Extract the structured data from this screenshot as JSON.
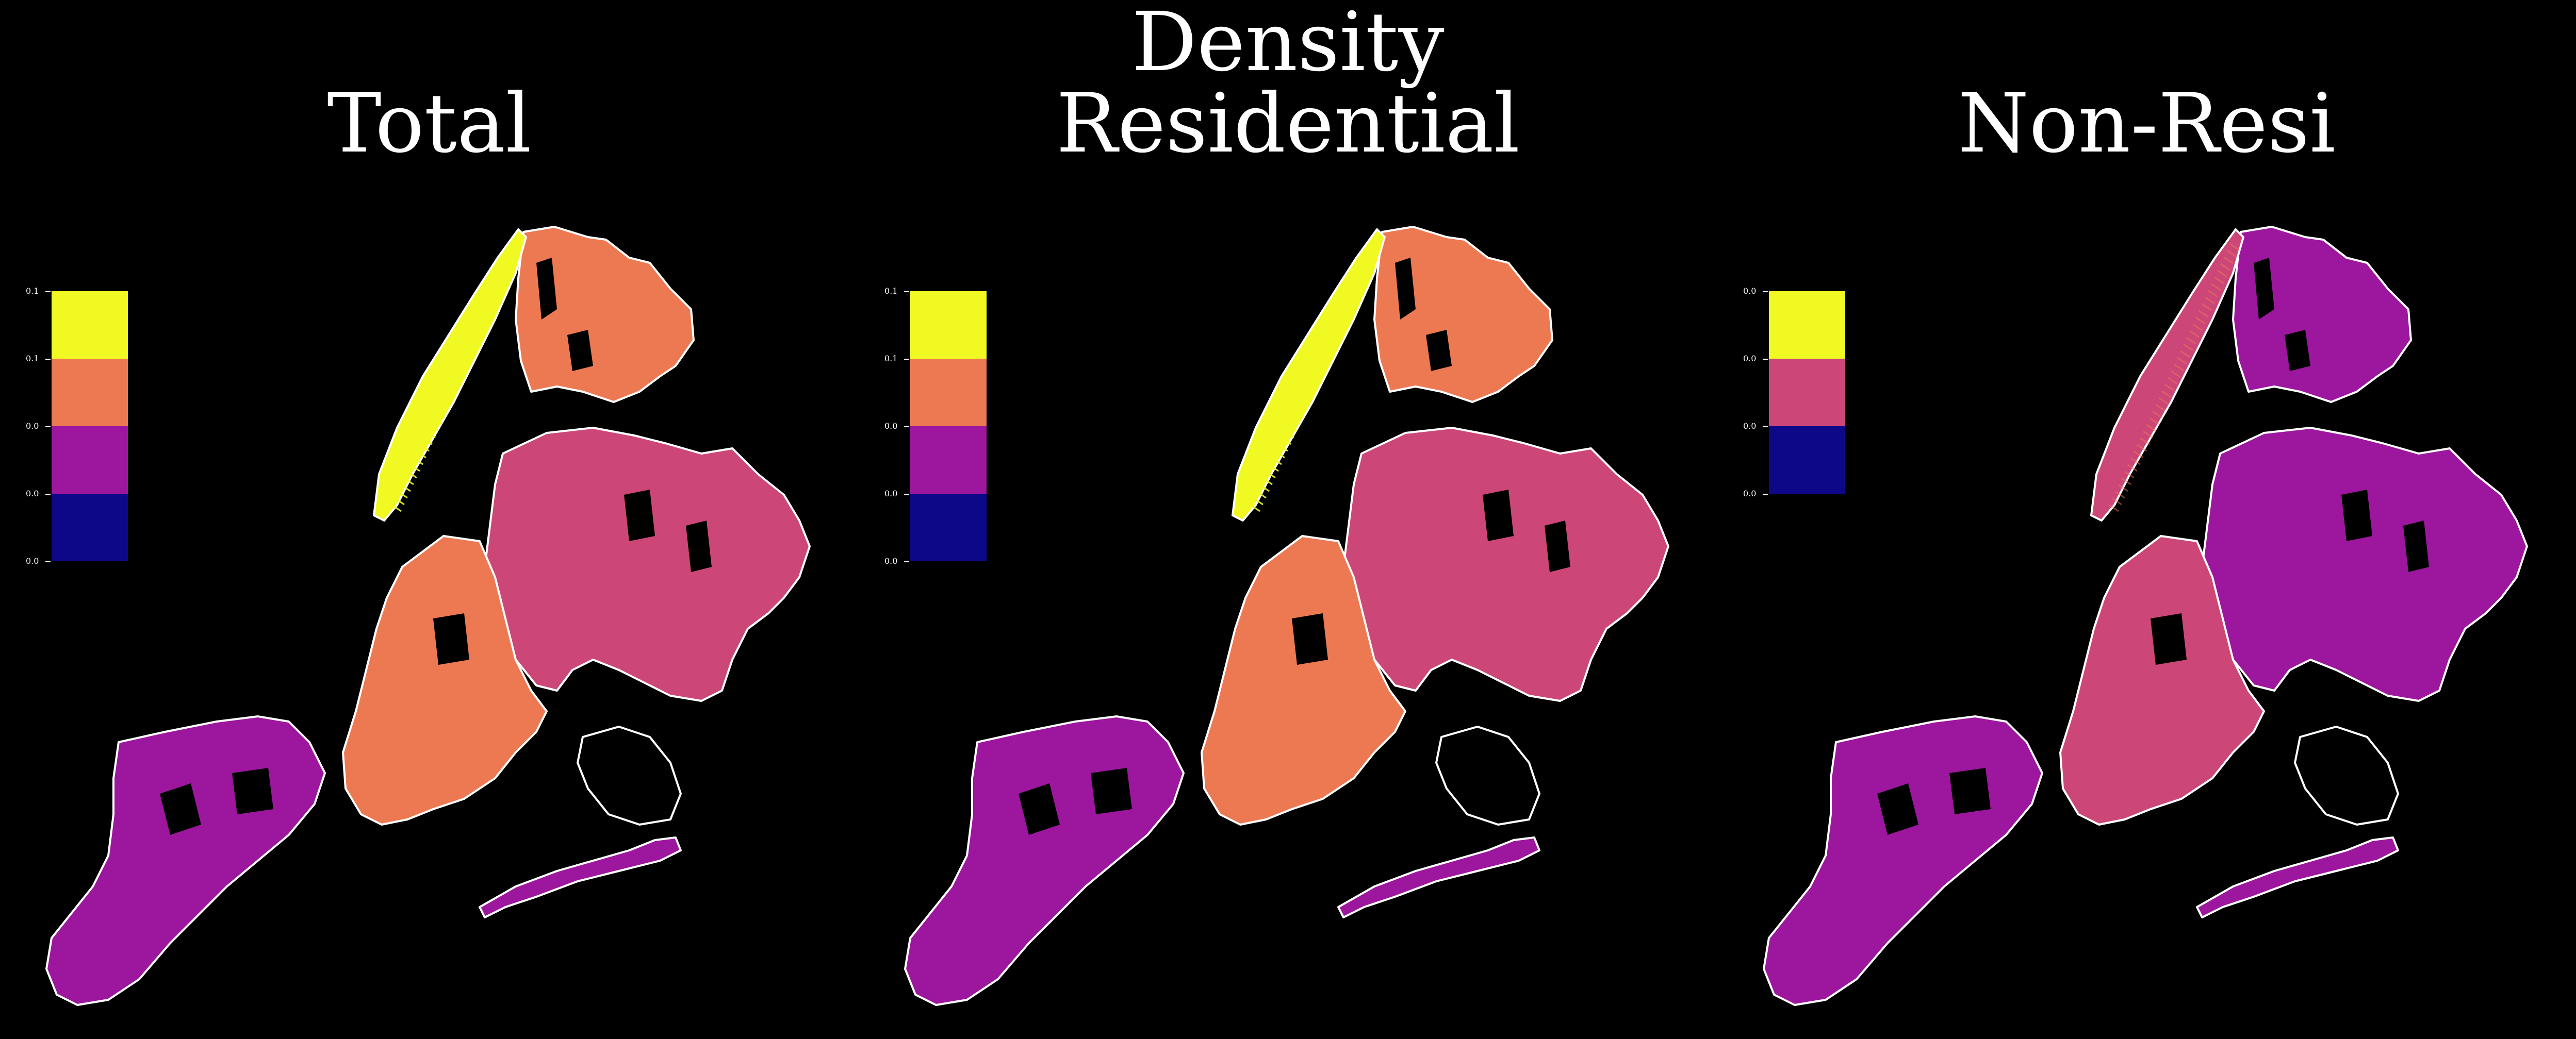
{
  "figure": {
    "suptitle": "Density"
  },
  "panels": [
    {
      "title": "Total",
      "legend": {
        "tick_labels": [
          "0.1",
          "0.1",
          "0.0",
          "0.0",
          "0.0"
        ],
        "colors": [
          "#f0f921",
          "#ed7953",
          "#9c179e",
          "#0d0887"
        ]
      }
    },
    {
      "title": "Residential",
      "legend": {
        "tick_labels": [
          "0.1",
          "0.1",
          "0.0",
          "0.0",
          "0.0"
        ],
        "colors": [
          "#f0f921",
          "#ed7953",
          "#9c179e",
          "#0d0887"
        ]
      }
    },
    {
      "title": "Non-Resi",
      "legend": {
        "tick_labels": [
          "0.0",
          "0.0",
          "0.0",
          "0.0"
        ],
        "colors": [
          "#f0f921",
          "#cc4778",
          "#0d0887"
        ]
      }
    }
  ],
  "map_palette": {
    "background": "#000000",
    "outline": "#ffffff",
    "low": "#9c179e",
    "mid": "#cc4778",
    "high": "#ed7953",
    "peak": "#f0f921"
  }
}
